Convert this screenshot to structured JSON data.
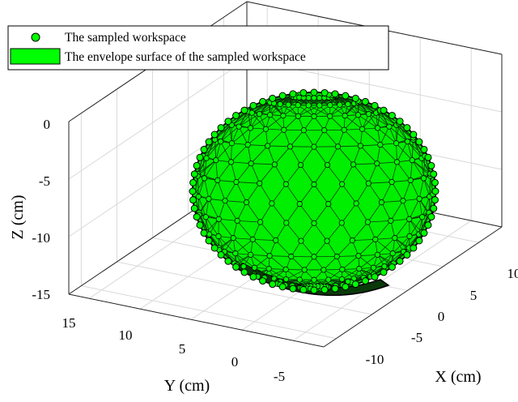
{
  "chart_data": {
    "type": "scatter",
    "projection": "3d",
    "title": "",
    "xlabel": "X (cm)",
    "ylabel": "Y (cm)",
    "zlabel": "Z (cm)",
    "xlim": [
      -15,
      12
    ],
    "ylim": [
      -8,
      18
    ],
    "zlim": [
      -15,
      1
    ],
    "x_ticks": [
      "-10",
      "-5",
      "0",
      "5",
      "10"
    ],
    "y_ticks": [
      "15",
      "10",
      "5",
      "0",
      "-5"
    ],
    "z_ticks": [
      "0",
      "-5",
      "-10",
      "-15"
    ],
    "grid": true,
    "legend_position": "top-left",
    "legend": [
      {
        "name": "The sampled workspace",
        "marker": "circle",
        "color": "#00ff00"
      },
      {
        "name": "The envelope surface of the sampled workspace",
        "marker": "patch",
        "color": "#00ff00"
      }
    ],
    "series": [
      {
        "name": "The sampled workspace",
        "shape": "ellipsoid cap",
        "center": [
          0,
          5,
          -5
        ],
        "radii": [
          9,
          9,
          9
        ],
        "z_range": [
          -14,
          3
        ],
        "marker_color": "#00ff00",
        "edge_color": "#000000"
      }
    ]
  }
}
